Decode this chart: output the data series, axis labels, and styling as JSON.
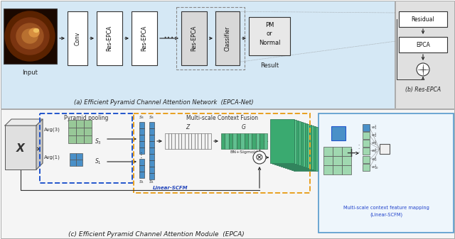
{
  "fig_width": 6.4,
  "fig_height": 3.37,
  "dpi": 100,
  "top_bg": "#d5e8f5",
  "top_right_bg": "#e0e0e0",
  "bottom_bg": "#f5f5f5",
  "inset_bg": "#eef6fc",
  "title_a": "(a) Efficient Pyramid Channel Attention Network  (EPCA-Net)",
  "title_b": "(b) Res-EPCA",
  "title_c": "(c) Efficient Pyramid Channel Attention Module  (EPCA)"
}
